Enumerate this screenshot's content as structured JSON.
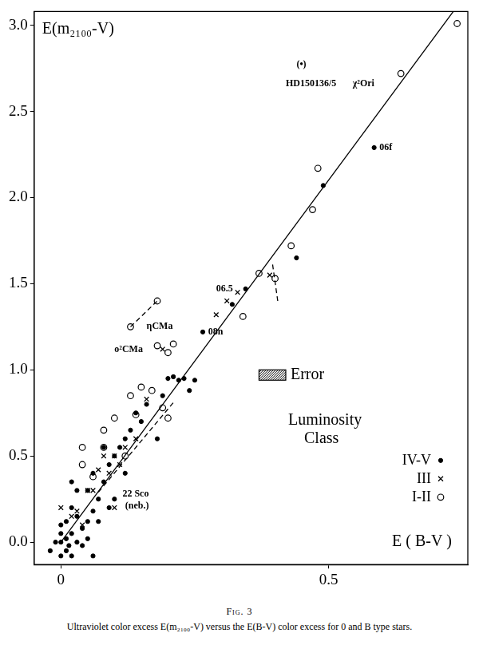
{
  "chart_data": {
    "type": "scatter",
    "title": "Fig. 3",
    "caption": "Ultraviolet color excess E(m₂₁₀₀-V) versus the E(B-V) color excess for 0 and B type stars.",
    "x_label": "E ( B-V )",
    "y_label": "E(m₂₁₀₀-V)",
    "xlim": [
      -0.05,
      0.76
    ],
    "ylim": [
      -0.13,
      3.08
    ],
    "xticks": [
      0,
      0.5
    ],
    "yticks": [
      {
        "value": 0,
        "label": "0.0"
      },
      0.5,
      {
        "value": 1,
        "label": "1.0"
      },
      1.5,
      {
        "value": 2,
        "label": "2.0"
      },
      2.5,
      {
        "value": 3,
        "label": "3.0"
      }
    ],
    "grid": false,
    "color": "#000000",
    "legend": "right",
    "legend_title": "Luminosity Class",
    "series": [
      {
        "name": "IV-V",
        "marker": "dot",
        "x": [
          -0.02,
          0,
          0.01,
          0.02,
          0,
          0.01,
          0.02,
          0.03,
          0,
          0.04,
          0.05,
          0.03,
          0.02,
          0.05,
          0.06,
          0.04,
          0.01,
          0.06,
          0.07,
          0.05,
          0.08,
          0.03,
          0.06,
          0.09,
          0.1,
          0.08,
          0.11,
          0.12,
          0.13,
          0.15,
          0.14,
          0.16,
          0.18,
          0.19,
          0.2,
          0.23,
          0.25,
          0.24,
          0.21,
          0.1,
          0.12,
          0.02,
          0.07,
          0.09,
          0.015,
          -0.01,
          0,
          0.265,
          0.345,
          0.32,
          0.585,
          0.44,
          0.49,
          0.22
        ],
        "values": [
          -0.05,
          0,
          0.02,
          0.05,
          0.1,
          -0.05,
          -0.08,
          0,
          -0.08,
          0.08,
          0.12,
          0.15,
          0.2,
          0.02,
          -0.08,
          -0.02,
          0.12,
          0.18,
          0.25,
          0.3,
          0.35,
          0.3,
          0.4,
          0.45,
          0.5,
          0.55,
          0.55,
          0.6,
          0.65,
          0.7,
          0.75,
          0.8,
          0.6,
          0.85,
          0.95,
          0.95,
          0.94,
          0.88,
          0.96,
          0.25,
          0.4,
          0.35,
          0.12,
          0.2,
          -0.02,
          0,
          0.05,
          1.22,
          1.47,
          1.38,
          2.29,
          1.65,
          2.07,
          0.94
        ]
      },
      {
        "name": "III",
        "marker": "cross",
        "x": [
          0,
          0.02,
          0.03,
          0.04,
          0.05,
          0.06,
          0.07,
          0.08,
          0.09,
          0.1,
          0.11,
          0.12,
          0.14,
          0.16,
          0.19,
          0.29,
          0.31,
          0.33,
          0.39,
          0.1
        ],
        "values": [
          0.2,
          0.15,
          0.18,
          0.1,
          0.3,
          0.3,
          0.42,
          0.5,
          0.4,
          0.5,
          0.45,
          0.55,
          0.6,
          0.83,
          1.12,
          1.32,
          1.4,
          1.45,
          1.55,
          0.2
        ]
      },
      {
        "name": "I-II",
        "marker": "circle",
        "x": [
          0.04,
          0.04,
          0.06,
          0.08,
          0.08,
          0.1,
          0.12,
          0.13,
          0.15,
          0.17,
          0.19,
          0.2,
          0.14,
          0.18,
          0.2,
          0.21,
          0.34,
          0.37,
          0.4,
          0.43,
          0.47,
          0.48,
          0.635,
          0.74,
          0.13,
          0.18
        ],
        "values": [
          0.55,
          0.45,
          0.38,
          0.55,
          0.65,
          0.72,
          0.5,
          0.85,
          0.9,
          0.88,
          0.78,
          0.72,
          0.74,
          1.14,
          1.1,
          1.15,
          1.31,
          1.56,
          1.53,
          1.72,
          1.93,
          2.17,
          2.72,
          3.01,
          1.25,
          1.4
        ]
      }
    ],
    "lines": [
      {
        "x": [
          0,
          0.74
        ],
        "values": [
          0,
          3.11
        ],
        "line_style": "solid"
      },
      {
        "x": [
          0.13,
          0.18
        ],
        "values": [
          1.25,
          1.4
        ],
        "line_style": "dashed"
      },
      {
        "x": [
          0.07,
          0.21
        ],
        "values": [
          0.29,
          0.81
        ],
        "line_style": "dashed"
      },
      {
        "x": [
          0.405,
          0.395
        ],
        "values": [
          1.4,
          1.62
        ],
        "line_style": "dashed"
      }
    ],
    "annotations": [
      {
        "text": "(•)",
        "x": 0.44,
        "y": 2.77
      },
      {
        "text": "HD150136/5",
        "x": 0.42,
        "y": 2.66
      },
      {
        "text": "χ²Ori",
        "x": 0.545,
        "y": 2.66
      },
      {
        "text": "06f",
        "x": 0.595,
        "y": 2.29
      },
      {
        "text": "06.5",
        "x": 0.29,
        "y": 1.47
      },
      {
        "text": "08n",
        "x": 0.275,
        "y": 1.22
      },
      {
        "text": "ηCMa",
        "x": 0.16,
        "y": 1.25
      },
      {
        "text": "o²CMa",
        "x": 0.1,
        "y": 1.12
      },
      {
        "text": "22 Sco",
        "x": 0.115,
        "y": 0.28
      },
      {
        "text": "(neb.)",
        "x": 0.12,
        "y": 0.21
      }
    ],
    "error_box": {
      "label": "Error",
      "x": [
        0.37,
        0.42
      ],
      "y": [
        0.94,
        1.0
      ]
    }
  }
}
